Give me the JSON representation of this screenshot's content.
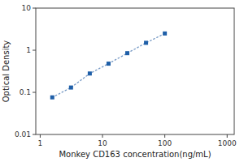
{
  "chart_data": {
    "type": "line",
    "xlabel": "Monkey CD163 concentration(ng/mL)",
    "ylabel": "Optical Density",
    "x": [
      1.563,
      3.125,
      6.25,
      12.5,
      25,
      50,
      100
    ],
    "values": [
      0.076,
      0.13,
      0.28,
      0.48,
      0.85,
      1.5,
      2.5
    ],
    "marker": "square",
    "line_style": "dotted",
    "log": true,
    "grid": false,
    "xlim": [
      0.85,
      1300
    ],
    "ylim": [
      0.01,
      10
    ],
    "xticks": [
      1,
      10,
      100,
      1000
    ],
    "yticks": [
      0.01,
      0.1,
      1,
      10
    ]
  }
}
